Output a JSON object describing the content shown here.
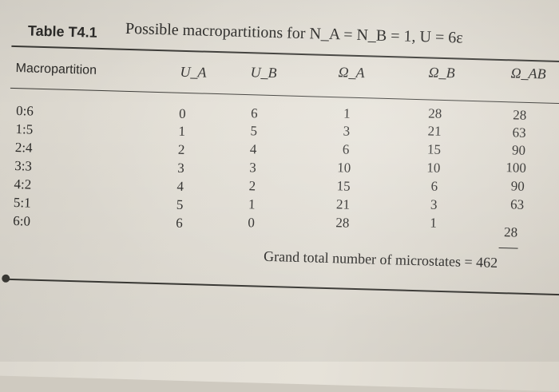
{
  "table": {
    "label": "Table T4.1",
    "caption": "Possible macropartitions for N_A = N_B = 1, U = 6ε",
    "columns": [
      "Macropartition",
      "U_A",
      "U_B",
      "Ω_A",
      "Ω_B",
      "Ω_AB"
    ],
    "rows": [
      {
        "macro": "0:6",
        "ua": "0",
        "ub": "6",
        "oa": "1",
        "ob": "28",
        "oab": "28"
      },
      {
        "macro": "1:5",
        "ua": "1",
        "ub": "5",
        "oa": "3",
        "ob": "21",
        "oab": "63"
      },
      {
        "macro": "2:4",
        "ua": "2",
        "ub": "4",
        "oa": "6",
        "ob": "15",
        "oab": "90"
      },
      {
        "macro": "3:3",
        "ua": "3",
        "ub": "3",
        "oa": "10",
        "ob": "10",
        "oab": "100"
      },
      {
        "macro": "4:2",
        "ua": "4",
        "ub": "2",
        "oa": "15",
        "ob": "6",
        "oab": "90"
      },
      {
        "macro": "5:1",
        "ua": "5",
        "ub": "1",
        "oa": "21",
        "ob": "3",
        "oab": "63"
      },
      {
        "macro": "6:0",
        "ua": "6",
        "ub": "0",
        "oa": "28",
        "ob": "1",
        "oab": "28"
      }
    ],
    "total_label": "Grand total number of microstates = 462"
  }
}
